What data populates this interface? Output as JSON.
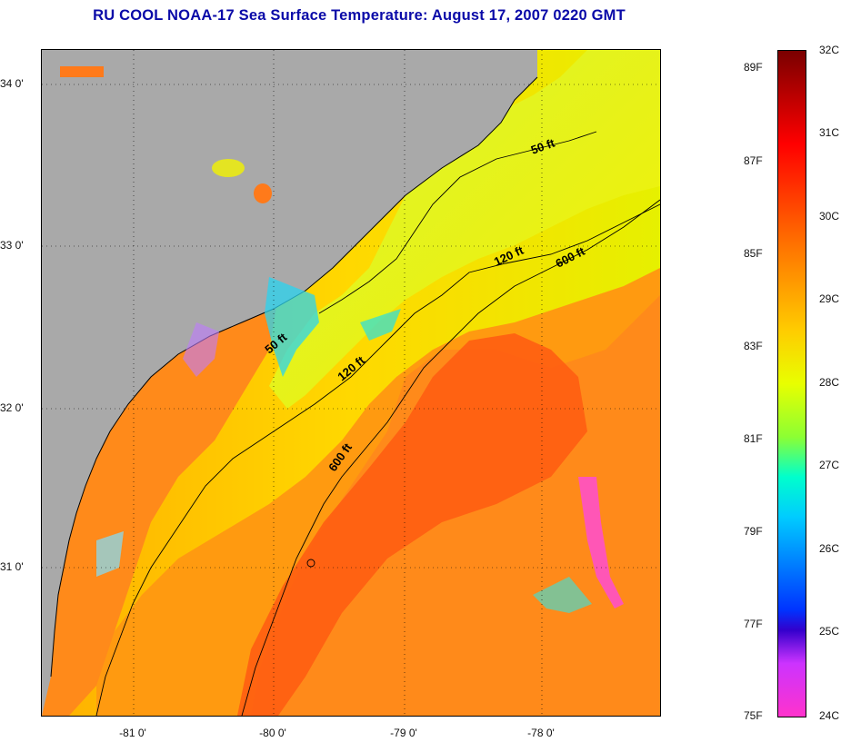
{
  "title": "RU COOL  NOAA-17  Sea Surface Temperature:  August 17, 2007 0220 GMT",
  "latitude_labels": [
    "34 0'",
    "33 0'",
    "32 0'",
    "31 0'"
  ],
  "longitude_labels": [
    "-81 0'",
    "-80 0'",
    "-79 0'",
    "-78 0'"
  ],
  "contour_labels": [
    "50 ft",
    "120 ft",
    "600 ft",
    "50 ft",
    "120 ft",
    "600 ft"
  ],
  "colorbar": {
    "celsius": [
      "32C",
      "31C",
      "30C",
      "29C",
      "28C",
      "27C",
      "26C",
      "25C",
      "24C"
    ],
    "fahrenheit": [
      "89F",
      "87F",
      "85F",
      "83F",
      "81F",
      "79F",
      "77F",
      "75F"
    ]
  },
  "colors": {
    "land": "#a9a9a9",
    "warm_water": "#ff7a1a",
    "shelf_water": "#f2f200",
    "title": "#0a0aa8"
  }
}
